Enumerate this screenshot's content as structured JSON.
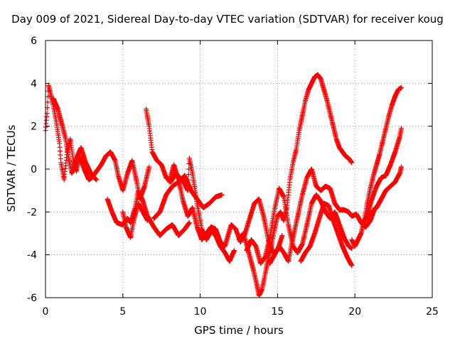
{
  "chart_data": {
    "type": "scatter",
    "title": "Day 009 of 2021, Sidereal Day-to-day VTEC variation (SDTVAR) for receiver koug",
    "xlabel": "GPS time / hours",
    "ylabel": "SDTVAR / TECUs",
    "xlim": [
      0,
      25
    ],
    "ylim": [
      -6,
      6
    ],
    "xticks": [
      0,
      5,
      10,
      15,
      20,
      25
    ],
    "yticks": [
      -6,
      -4,
      -2,
      0,
      2,
      4,
      6
    ],
    "grid": true,
    "marker": "plus",
    "marker_color": "#ff0000",
    "series": [
      {
        "x": [
          0,
          0.1,
          0.2,
          0.3,
          0.5,
          0.7,
          0.9,
          1.0,
          1.2,
          1.4,
          1.6,
          1.8,
          2.0,
          2.2,
          2.5,
          2.8,
          3.0,
          3.3,
          3.6,
          3.9,
          4.2,
          4.5,
          4.7,
          5.0,
          5.3,
          5.6,
          5.9,
          6.1,
          6.4,
          6.7
        ],
        "y": [
          1.8,
          2.6,
          3.9,
          3.6,
          3.0,
          2.2,
          1.2,
          0.3,
          -0.5,
          0.8,
          1.4,
          0.4,
          -0.1,
          0.6,
          0.0,
          -0.5,
          -0.4,
          -0.1,
          0.2,
          0.6,
          0.8,
          0.4,
          -0.3,
          -1.0,
          -0.2,
          0.4,
          -0.6,
          -1.4,
          -0.8,
          0.1
        ]
      },
      {
        "x": [
          0.5,
          0.8,
          1.1,
          1.3,
          1.5,
          1.7,
          2.0,
          2.3,
          2.6,
          3.0,
          3.3
        ],
        "y": [
          3.3,
          2.8,
          2.0,
          1.4,
          0.5,
          -0.2,
          0.5,
          1.0,
          0.3,
          -0.3,
          -0.5
        ]
      },
      {
        "x": [
          4.0,
          4.3,
          4.6,
          5.0,
          5.3,
          5.5,
          5.8,
          6.0,
          6.3,
          6.6,
          7.0,
          7.4,
          7.8,
          8.2,
          8.6,
          9.0,
          9.3
        ],
        "y": [
          -1.4,
          -2.0,
          -2.5,
          -2.6,
          -2.3,
          -2.5,
          -1.8,
          -1.0,
          -1.5,
          -2.2,
          -2.7,
          -3.1,
          -2.8,
          -2.6,
          -3.1,
          -2.8,
          -2.5
        ]
      },
      {
        "x": [
          5.0,
          5.2,
          5.5,
          5.7,
          6.0,
          6.3,
          6.6
        ],
        "y": [
          -2.0,
          -2.7,
          -3.2,
          -2.4,
          -1.6,
          -2.0,
          -2.4
        ]
      },
      {
        "x": [
          6.5,
          6.7,
          6.9,
          7.2,
          7.5,
          7.8,
          8.1,
          8.4,
          8.7,
          9.0,
          9.2,
          9.3,
          9.5,
          9.8,
          10.1,
          10.4,
          10.7,
          11.0,
          11.3,
          11.6,
          11.9,
          12.2
        ],
        "y": [
          2.8,
          2.0,
          0.8,
          0.4,
          0.2,
          -0.4,
          -0.6,
          -0.2,
          -0.4,
          -0.7,
          -1.0,
          0.5,
          -0.2,
          -1.6,
          -2.8,
          -3.3,
          -2.9,
          -3.1,
          -3.6,
          -3.9,
          -4.3,
          -3.8
        ]
      },
      {
        "x": [
          7.0,
          7.4,
          7.8,
          8.2,
          8.6,
          9.0,
          9.4,
          9.8,
          10.2,
          10.6,
          11.0,
          11.4
        ],
        "y": [
          -2.3,
          -2.0,
          -1.2,
          -0.8,
          -0.6,
          -0.3,
          -1.0,
          -1.4,
          -1.8,
          -1.6,
          -1.3,
          -1.2
        ]
      },
      {
        "x": [
          8.0,
          8.3,
          8.6,
          8.9,
          9.2,
          9.5,
          9.8,
          10.1,
          10.4,
          10.7,
          11.0,
          11.3,
          11.6,
          12.0,
          12.3,
          12.6,
          12.9,
          13.2,
          13.5,
          13.8,
          14.1,
          14.4,
          14.7,
          15.0,
          15.3
        ],
        "y": [
          -0.6,
          0.2,
          -0.5,
          -1.5,
          -2.2,
          -1.8,
          -2.7,
          -3.3,
          -3.0,
          -2.7,
          -2.8,
          -3.4,
          -3.6,
          -2.6,
          -2.8,
          -3.4,
          -3.0,
          -2.3,
          -1.6,
          -1.4,
          -2.2,
          -3.3,
          -3.9,
          -3.8,
          -3.1
        ]
      },
      {
        "x": [
          12.5,
          12.8,
          13.1,
          13.4,
          13.6,
          13.8,
          14.0,
          14.2,
          14.4,
          14.6,
          14.8,
          15.0,
          15.2,
          15.4,
          15.6,
          15.8,
          16.0,
          16.2,
          16.4,
          16.6,
          16.8,
          17.0,
          17.2,
          17.4,
          17.6,
          17.8,
          18.0,
          18.2,
          18.4,
          18.6,
          18.8,
          19.0,
          19.2,
          19.4,
          19.6,
          19.8
        ],
        "y": [
          -3.3,
          -3.0,
          -3.8,
          -4.6,
          -5.2,
          -5.9,
          -5.6,
          -4.9,
          -4.2,
          -3.6,
          -2.8,
          -2.2,
          -2.0,
          -2.4,
          -1.8,
          -0.5,
          0.3,
          0.9,
          1.8,
          2.5,
          3.2,
          3.7,
          4.0,
          4.3,
          4.4,
          4.2,
          3.7,
          3.2,
          2.6,
          2.0,
          1.4,
          1.0,
          0.8,
          0.6,
          0.5,
          0.3
        ]
      },
      {
        "x": [
          13.0,
          13.3,
          13.6,
          13.9,
          14.2,
          14.5,
          14.8,
          15.1,
          15.4,
          15.7,
          16.0,
          16.3,
          16.6,
          16.9,
          17.2,
          17.5,
          17.8,
          18.1,
          18.4,
          18.7,
          19.0,
          19.3,
          19.6,
          19.8
        ],
        "y": [
          -3.8,
          -3.3,
          -3.6,
          -4.4,
          -4.1,
          -3.2,
          -1.9,
          -0.9,
          -1.3,
          -2.6,
          -3.6,
          -3.9,
          -3.5,
          -2.6,
          -1.6,
          -1.2,
          -1.5,
          -2.0,
          -2.3,
          -2.0,
          -2.6,
          -3.2,
          -3.6,
          -3.7
        ]
      },
      {
        "x": [
          14.5,
          14.8,
          15.1,
          15.4,
          15.7,
          16.0,
          16.3,
          16.6,
          16.9,
          17.2,
          17.5,
          17.8,
          18.1,
          18.4,
          18.7,
          19.0,
          19.3,
          19.6,
          19.8,
          20.1,
          20.4,
          20.7,
          21.0,
          21.3
        ],
        "y": [
          -4.4,
          -4.0,
          -3.6,
          -3.9,
          -4.3,
          -3.2,
          -2.2,
          -1.2,
          -0.4,
          0.0,
          -0.8,
          -1.0,
          -0.8,
          -0.9,
          -1.6,
          -1.9,
          -1.9,
          -2.0,
          -2.2,
          -2.1,
          -2.5,
          -2.7,
          -2.4,
          -1.8
        ]
      },
      {
        "x": [
          16.5,
          16.8,
          17.1,
          17.4,
          17.7,
          18.0,
          18.3,
          18.6,
          18.9,
          19.2,
          19.5,
          19.8
        ],
        "y": [
          -4.3,
          -3.9,
          -3.6,
          -3.0,
          -2.3,
          -1.6,
          -1.7,
          -2.4,
          -3.0,
          -3.6,
          -4.1,
          -4.5
        ]
      },
      {
        "x": [
          19.8,
          20.0,
          20.2,
          20.4,
          20.6,
          20.8,
          21.0,
          21.2,
          21.4,
          21.6,
          21.8,
          22.0,
          22.2,
          22.4,
          22.6,
          22.8,
          23.0
        ],
        "y": [
          -3.3,
          -3.6,
          -3.3,
          -3.0,
          -2.4,
          -1.6,
          -0.9,
          -0.3,
          0.2,
          0.7,
          1.3,
          1.9,
          2.5,
          3.0,
          3.4,
          3.7,
          3.8
        ]
      },
      {
        "x": [
          20.5,
          20.8,
          21.1,
          21.4,
          21.7,
          22.0,
          22.3,
          22.6,
          22.9,
          23.0
        ],
        "y": [
          -2.6,
          -2.1,
          -1.4,
          -0.8,
          -0.4,
          -0.3,
          0.2,
          0.8,
          1.5,
          1.9
        ]
      },
      {
        "x": [
          20.8,
          21.1,
          21.4,
          21.7,
          22.0,
          22.3,
          22.6,
          22.9,
          23.0
        ],
        "y": [
          -2.3,
          -2.0,
          -1.8,
          -1.4,
          -1.0,
          -0.8,
          -0.6,
          -0.2,
          0.1
        ]
      }
    ]
  }
}
